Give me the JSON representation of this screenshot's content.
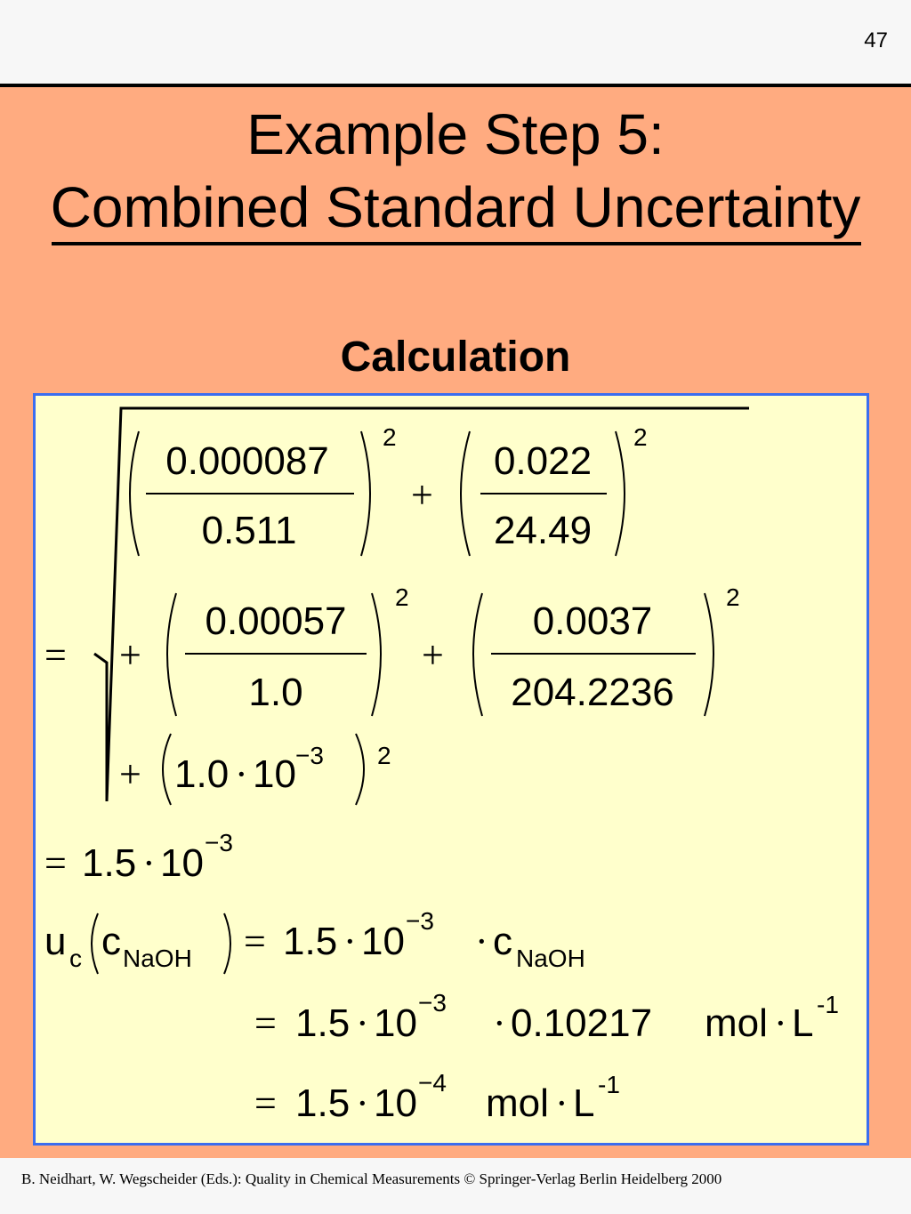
{
  "page_number": "47",
  "title": {
    "line1": "Example Step 5:",
    "line2": "Combined Standard Uncertainty"
  },
  "subtitle": "Calculation",
  "equation": {
    "frac1_num": "0.000087",
    "frac1_den": "0.511",
    "frac2_num": "0.022",
    "frac2_den": "24.49",
    "frac3_num": "0.00057",
    "frac3_den": "1.0",
    "frac4_num": "0.0037",
    "frac4_den": "204.2236",
    "exponent_2": "2",
    "term5_base": "1.0",
    "ten": "10",
    "exp_neg3": "−3",
    "exp_neg4": "−4",
    "result_coeff": "1.5",
    "uc_u": "u",
    "uc_c_sub": "c",
    "c_symbol": "c",
    "naoh_sub": "NaOH",
    "concentration": "0.10217",
    "unit_mol": "mol",
    "unit_L": "L",
    "unit_exp": "-1",
    "equals": "=",
    "plus": "+",
    "dot": "·"
  },
  "footer": "B. Neidhart, W. Wegscheider (Eds.): Quality in Chemical Measurements © Springer-Verlag Berlin Heidelberg 2000"
}
